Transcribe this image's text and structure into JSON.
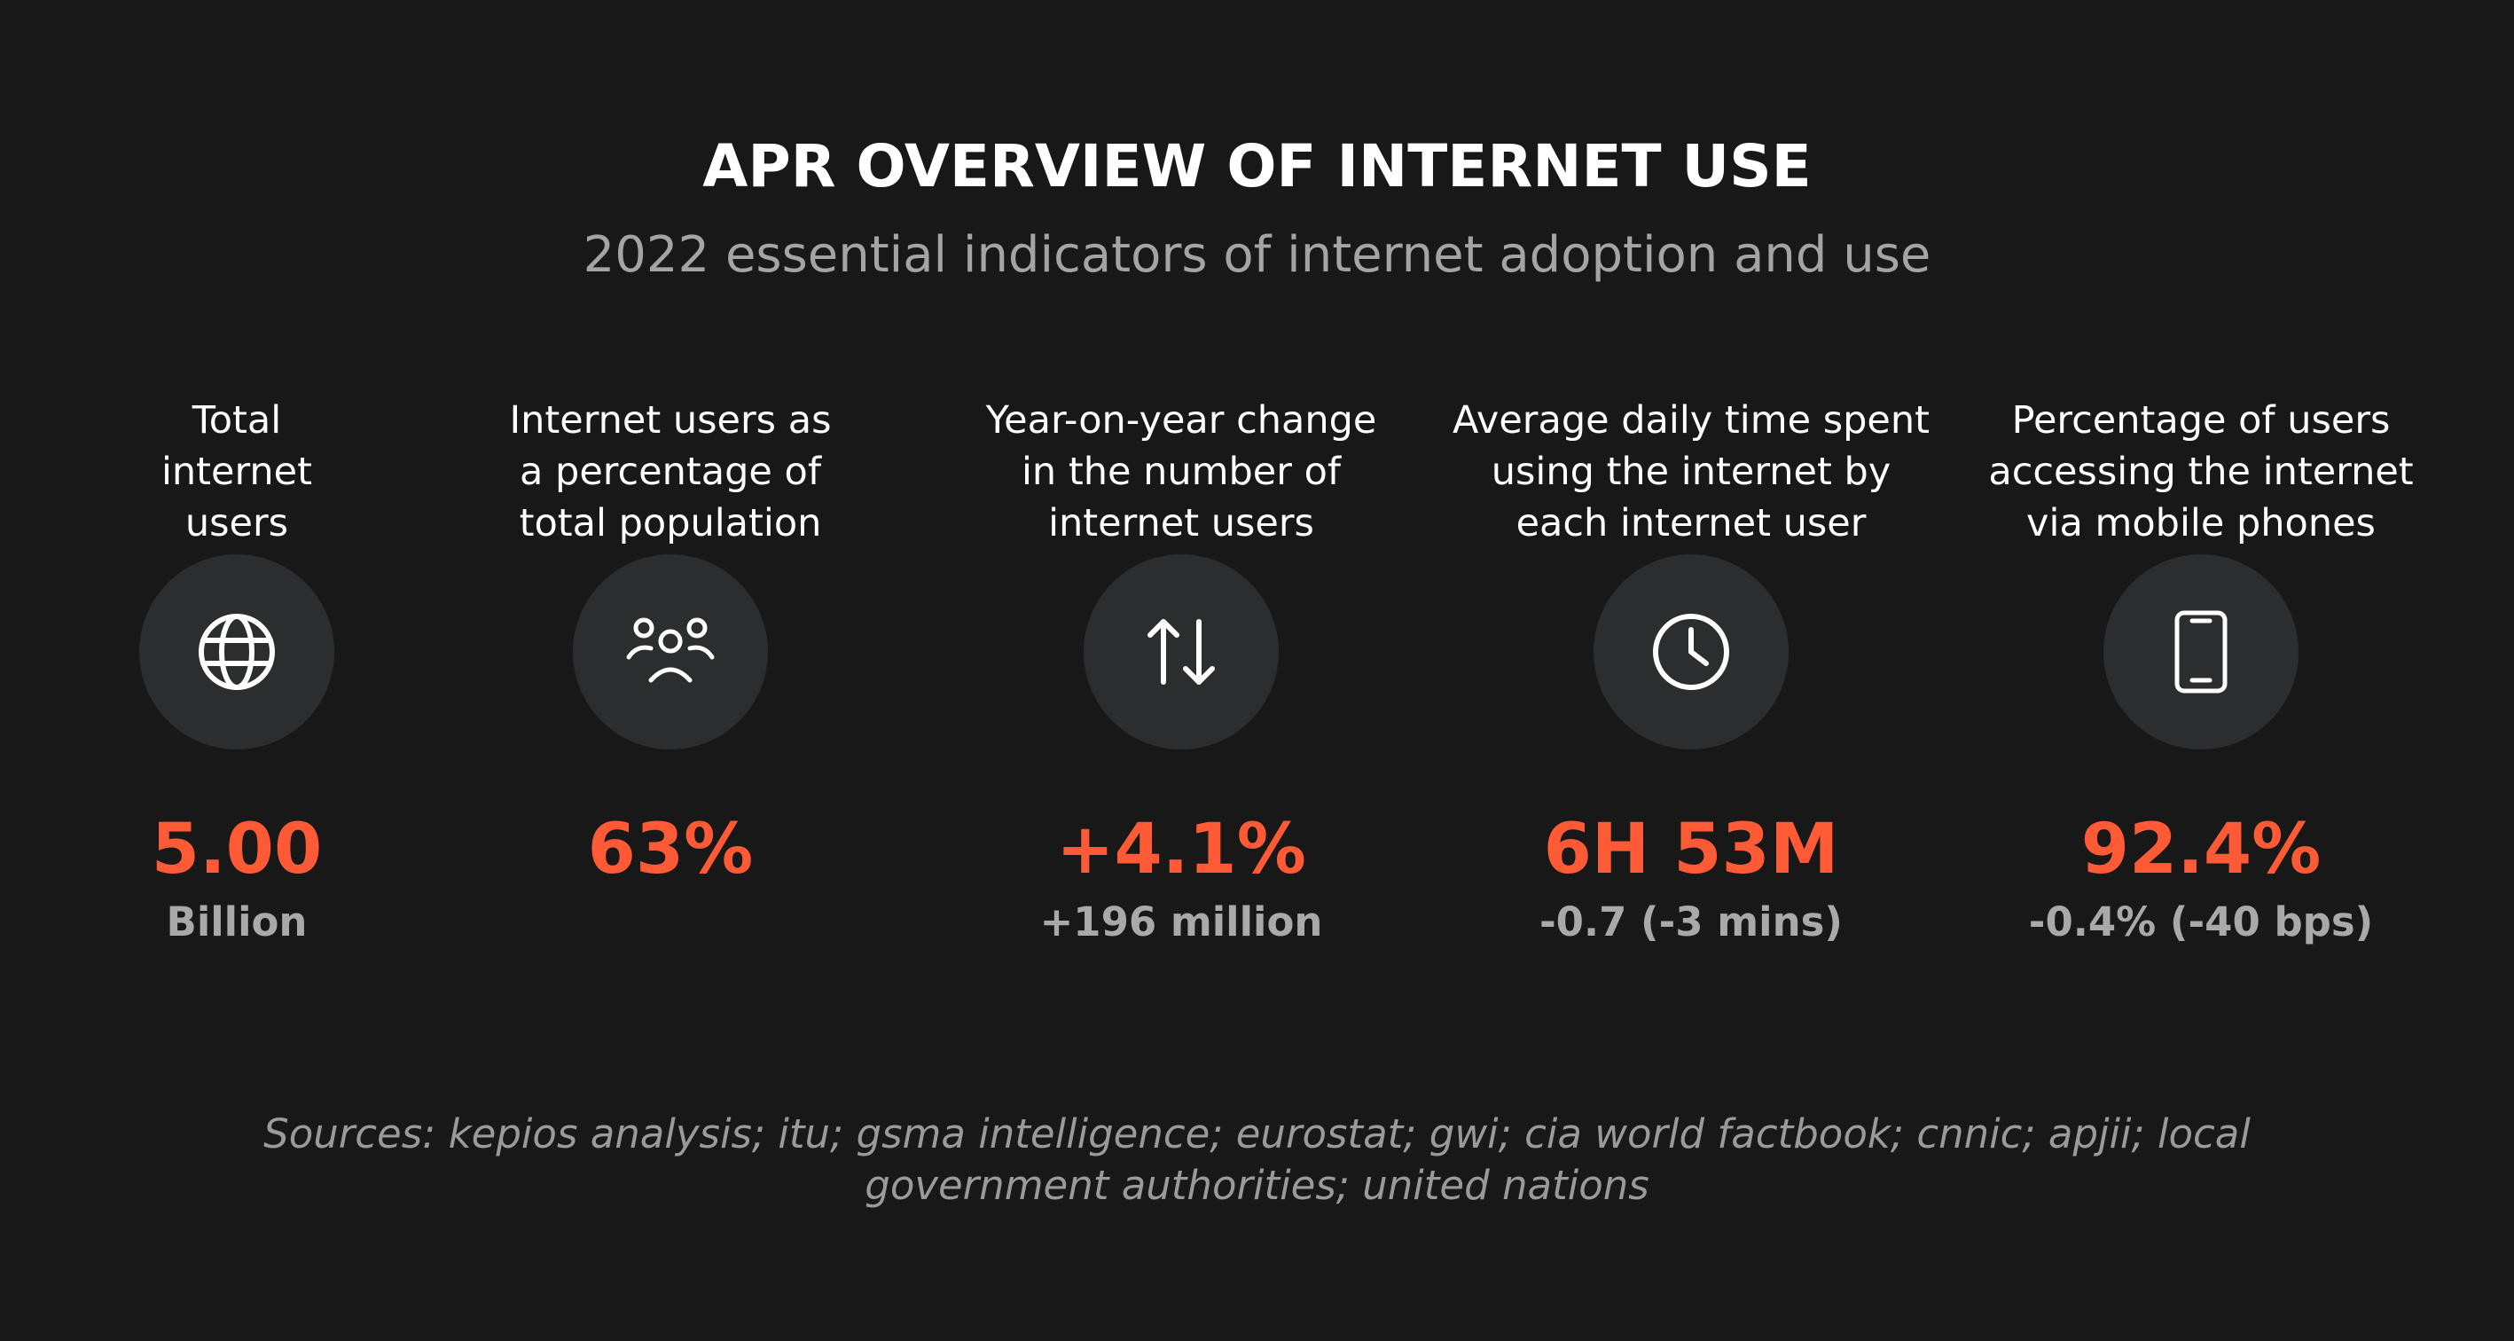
{
  "header": {
    "title": "APR OVERVIEW OF INTERNET USE",
    "subtitle": "2022 essential indicators of internet adoption and use"
  },
  "stats": [
    {
      "label_lines": [
        "Total",
        "internet",
        "users"
      ],
      "icon": "globe-icon",
      "value": "5.00",
      "sub": "Billion"
    },
    {
      "label_lines": [
        "Internet users as",
        "a percentage of",
        "total population"
      ],
      "icon": "people-icon",
      "value": "63%",
      "sub": ""
    },
    {
      "label_lines": [
        "Year-on-year change",
        "in the number of",
        "internet users"
      ],
      "icon": "up-down-arrows-icon",
      "value": "+4.1%",
      "sub": "+196 million"
    },
    {
      "label_lines": [
        "Average daily time spent",
        "using the internet by",
        "each internet user"
      ],
      "icon": "clock-icon",
      "value": "6H 53M",
      "sub": "-0.7 (-3 mins)"
    },
    {
      "label_lines": [
        "Percentage of users",
        "accessing the internet",
        "via mobile phones"
      ],
      "icon": "mobile-phone-icon",
      "value": "92.4%",
      "sub": "-0.4% (-40 bps)"
    }
  ],
  "footer": {
    "sources": "Sources: kepios analysis; itu; gsma intelligence; eurostat; gwi; cia world factbook; cnnic; apjii; local government authorities; united nations"
  },
  "colors": {
    "background": "#181818",
    "accent": "#ff5a36",
    "icon_circle": "#2c2d2f",
    "muted_text": "#a4a4a4"
  }
}
